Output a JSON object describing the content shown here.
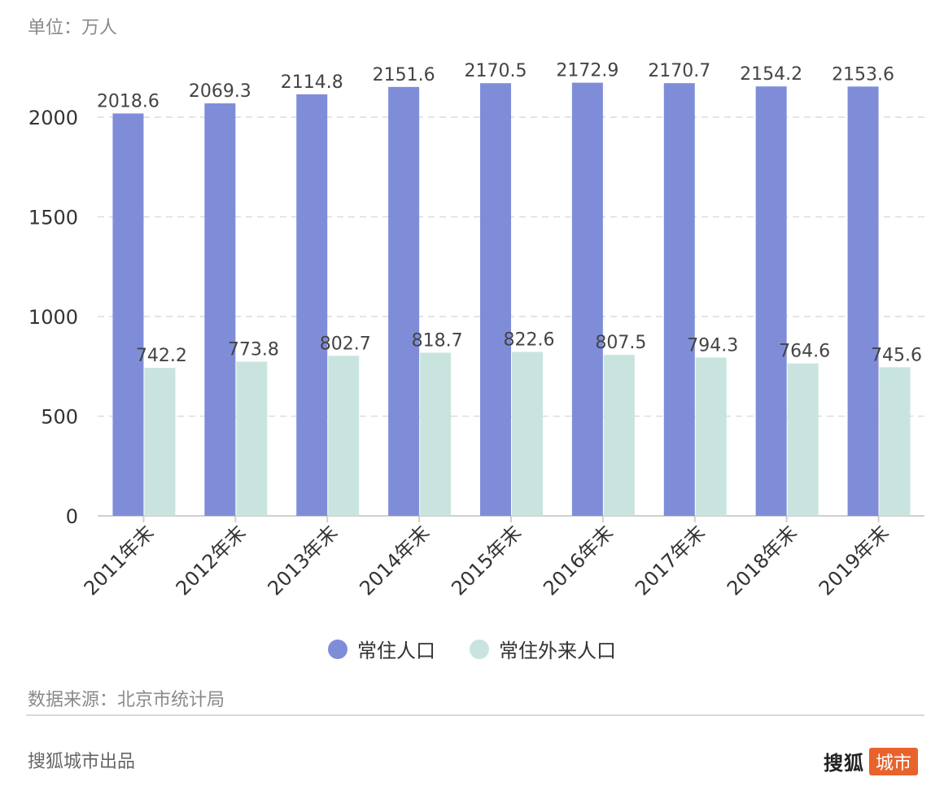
{
  "unit_label": "单位：万人",
  "source_label": "数据来源：北京市统计局",
  "footer_label": "搜狐城市出品",
  "brand": {
    "main": "搜狐",
    "tag": "城市"
  },
  "colors": {
    "series1": "#7f8dd9",
    "series2": "#c9e4de",
    "brand_tag": "#e8632c"
  },
  "chart_data": {
    "type": "bar",
    "title": "",
    "xlabel": "",
    "ylabel": "",
    "ylim": [
      0,
      2200
    ],
    "yticks": [
      0,
      500,
      1000,
      1500,
      2000
    ],
    "grid": true,
    "legend_position": "bottom",
    "categories": [
      "2011年末",
      "2012年末",
      "2013年末",
      "2014年末",
      "2015年末",
      "2016年末",
      "2017年末",
      "2018年末",
      "2019年末"
    ],
    "series": [
      {
        "name": "常住人口",
        "values": [
          2018.6,
          2069.3,
          2114.8,
          2151.6,
          2170.5,
          2172.9,
          2170.7,
          2154.2,
          2153.6
        ]
      },
      {
        "name": "常住外来人口",
        "values": [
          742.2,
          773.8,
          802.7,
          818.7,
          822.6,
          807.5,
          794.3,
          764.6,
          745.6
        ]
      }
    ]
  }
}
